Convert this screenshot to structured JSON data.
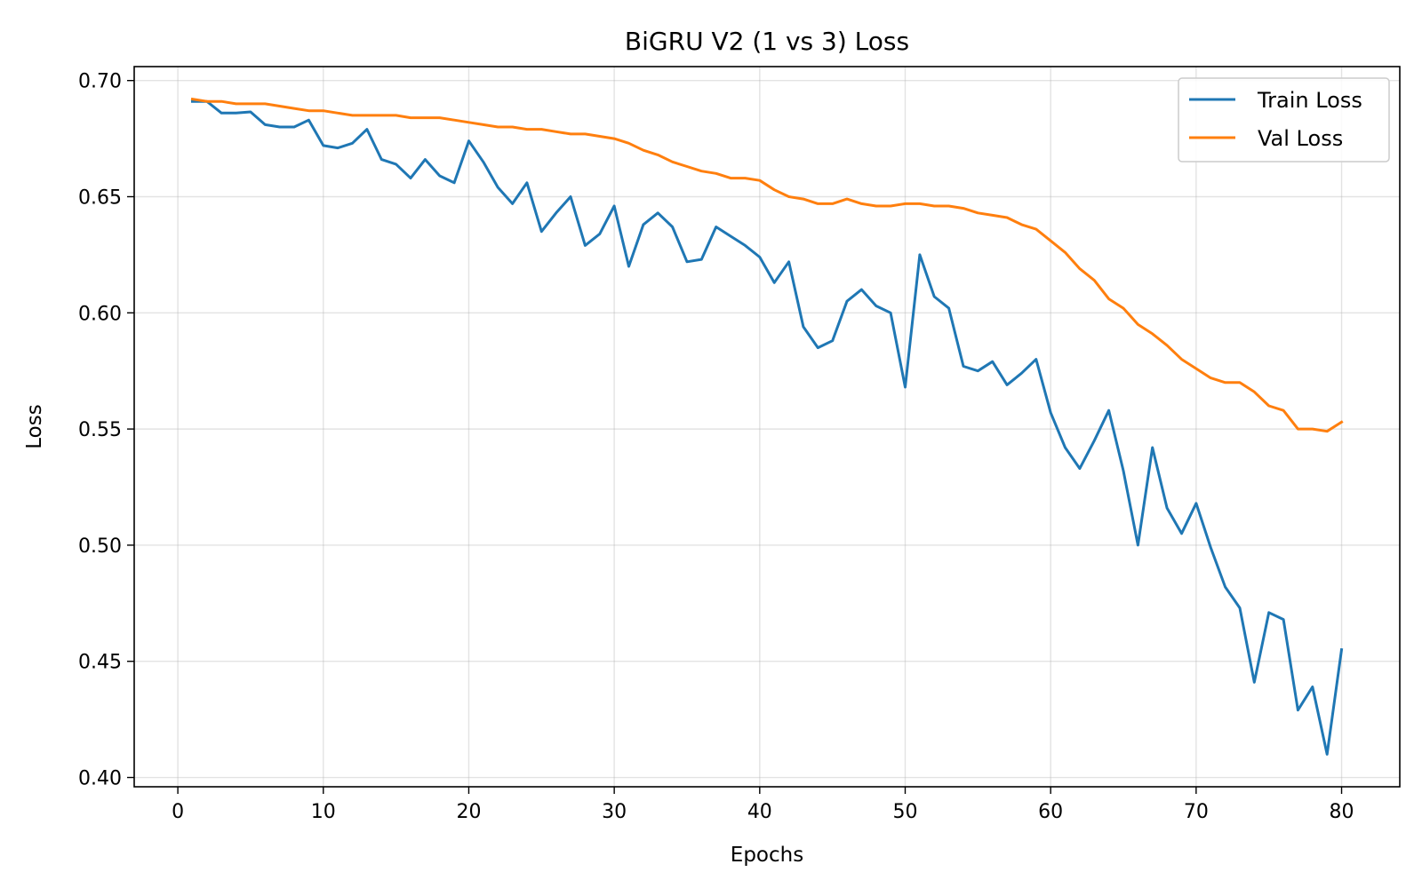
{
  "chart_data": {
    "type": "line",
    "title": "BiGRU V2 (1 vs 3) Loss",
    "xlabel": "Epochs",
    "ylabel": "Loss",
    "xlim": [
      -3,
      84
    ],
    "ylim": [
      0.396,
      0.706
    ],
    "xticks": [
      0,
      10,
      20,
      30,
      40,
      50,
      60,
      70,
      80
    ],
    "yticks": [
      0.4,
      0.45,
      0.5,
      0.55,
      0.6,
      0.65,
      0.7
    ],
    "ytick_labels": [
      "0.40",
      "0.45",
      "0.50",
      "0.55",
      "0.60",
      "0.65",
      "0.70"
    ],
    "grid": true,
    "legend_position": "top-right",
    "x": [
      1,
      2,
      3,
      4,
      5,
      6,
      7,
      8,
      9,
      10,
      11,
      12,
      13,
      14,
      15,
      16,
      17,
      18,
      19,
      20,
      21,
      22,
      23,
      24,
      25,
      26,
      27,
      28,
      29,
      30,
      31,
      32,
      33,
      34,
      35,
      36,
      37,
      38,
      39,
      40,
      41,
      42,
      43,
      44,
      45,
      46,
      47,
      48,
      49,
      50,
      51,
      52,
      53,
      54,
      55,
      56,
      57,
      58,
      59,
      60,
      61,
      62,
      63,
      64,
      65,
      66,
      67,
      68,
      69,
      70,
      71,
      72,
      73,
      74,
      75,
      76,
      77,
      78,
      79,
      80
    ],
    "series": [
      {
        "name": "Train Loss",
        "color": "#1f77b4",
        "values": [
          0.691,
          0.691,
          0.686,
          0.686,
          0.6865,
          0.681,
          0.68,
          0.68,
          0.683,
          0.672,
          0.671,
          0.673,
          0.679,
          0.666,
          0.664,
          0.658,
          0.666,
          0.659,
          0.656,
          0.674,
          0.665,
          0.654,
          0.647,
          0.656,
          0.635,
          0.643,
          0.65,
          0.629,
          0.634,
          0.646,
          0.62,
          0.638,
          0.643,
          0.637,
          0.622,
          0.623,
          0.637,
          0.633,
          0.629,
          0.624,
          0.613,
          0.622,
          0.594,
          0.585,
          0.588,
          0.605,
          0.61,
          0.603,
          0.6,
          0.568,
          0.625,
          0.607,
          0.602,
          0.577,
          0.575,
          0.579,
          0.569,
          0.574,
          0.58,
          0.557,
          0.542,
          0.533,
          0.545,
          0.558,
          0.532,
          0.5,
          0.542,
          0.516,
          0.505,
          0.518,
          0.499,
          0.482,
          0.473,
          0.441,
          0.471,
          0.468,
          0.429,
          0.439,
          0.41,
          0.455
        ]
      },
      {
        "name": "Val Loss",
        "color": "#ff7f0e",
        "values": [
          0.692,
          0.691,
          0.691,
          0.69,
          0.69,
          0.69,
          0.689,
          0.688,
          0.687,
          0.687,
          0.686,
          0.685,
          0.685,
          0.685,
          0.685,
          0.684,
          0.684,
          0.684,
          0.683,
          0.682,
          0.681,
          0.68,
          0.68,
          0.679,
          0.679,
          0.678,
          0.677,
          0.677,
          0.676,
          0.675,
          0.673,
          0.67,
          0.668,
          0.665,
          0.663,
          0.661,
          0.66,
          0.658,
          0.658,
          0.657,
          0.653,
          0.65,
          0.649,
          0.647,
          0.647,
          0.649,
          0.647,
          0.646,
          0.646,
          0.647,
          0.647,
          0.646,
          0.646,
          0.645,
          0.643,
          0.642,
          0.641,
          0.638,
          0.636,
          0.631,
          0.626,
          0.619,
          0.614,
          0.606,
          0.602,
          0.595,
          0.591,
          0.586,
          0.58,
          0.576,
          0.572,
          0.57,
          0.57,
          0.566,
          0.56,
          0.558,
          0.55,
          0.55,
          0.549,
          0.553
        ]
      }
    ]
  }
}
